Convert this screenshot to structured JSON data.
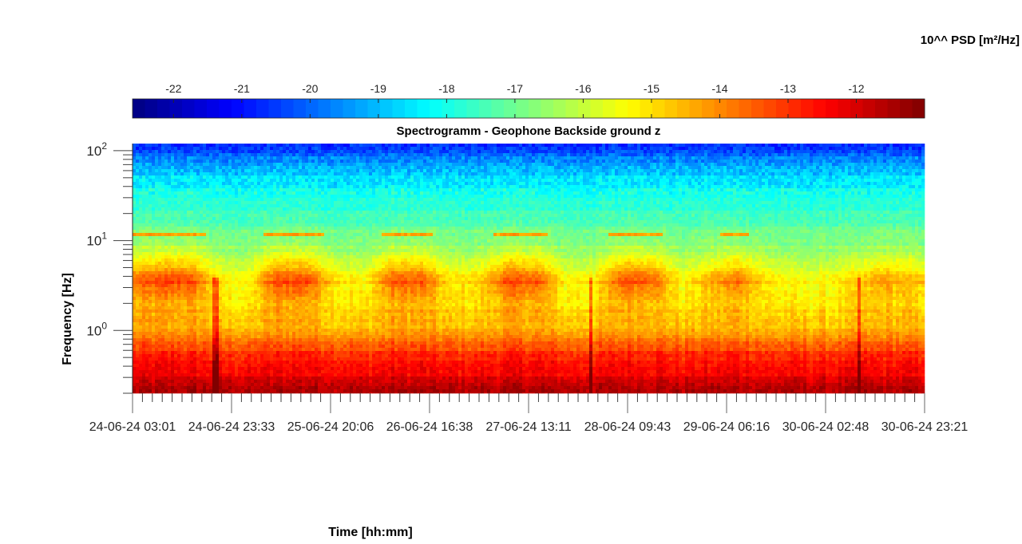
{
  "chart_data": {
    "type": "heatmap",
    "title": "Spectrogramm - Geophone Backside ground z",
    "xlabel": "Time [hh:mm]",
    "ylabel": "Frequency [Hz]",
    "colorbar_label": "10^^ PSD [m²/Hz]",
    "colorbar_ticks": [
      "-22",
      "-21",
      "-20",
      "-19",
      "-18",
      "-17",
      "-16",
      "-15",
      "-14",
      "-13",
      "-12"
    ],
    "colorbar_tick_values": [
      -22,
      -21,
      -20,
      -19,
      -18,
      -17,
      -16,
      -15,
      -14,
      -13,
      -12
    ],
    "clim": [
      -22.6,
      -11.0
    ],
    "colormap": "jet",
    "yscale": "log",
    "ylim": [
      0.2,
      120
    ],
    "ytick_values": [
      1,
      10,
      100
    ],
    "ytick_labels": [
      {
        "base": "10",
        "exp": "0"
      },
      {
        "base": "10",
        "exp": "1"
      },
      {
        "base": "10",
        "exp": "2"
      }
    ],
    "xlim_hours": [
      0,
      164.33
    ],
    "xtick_hours": [
      0,
      20.54,
      41.08,
      61.62,
      82.17,
      102.71,
      123.25,
      143.79,
      164.33
    ],
    "xtick_labels": [
      "24-06-24 03:01",
      "24-06-24 23:33",
      "25-06-24 20:06",
      "26-06-24 16:38",
      "27-06-24 13:11",
      "28-06-24 09:43",
      "29-06-24 06:16",
      "30-06-24 02:48",
      "30-06-24 23:21"
    ],
    "frequencies_hz": [
      0.2,
      0.3,
      0.5,
      0.7,
      1,
      2,
      3.5,
      6,
      10,
      20,
      50,
      120
    ],
    "psd_log10_quiet": [
      -11.6,
      -12.3,
      -13.0,
      -13.6,
      -14.6,
      -15.2,
      -15.6,
      -16.4,
      -16.9,
      -17.5,
      -18.6,
      -20.6
    ],
    "psd_log10_active": [
      -11.5,
      -12.2,
      -12.7,
      -13.4,
      -14.3,
      -14.3,
      -13.2,
      -15.2,
      -16.6,
      -17.4,
      -18.5,
      -20.6
    ],
    "time_hours": [
      0,
      6,
      12,
      18,
      24,
      30,
      36,
      42,
      48,
      54,
      60,
      66,
      72,
      78,
      84,
      90,
      96,
      102,
      108,
      114,
      120,
      126,
      132,
      138,
      144,
      150,
      156,
      162
    ],
    "activity": [
      0.8,
      1,
      1,
      0.2,
      0.1,
      1,
      1,
      0.3,
      0.1,
      0.9,
      0.9,
      0.2,
      0.3,
      1,
      0.9,
      0.1,
      0.2,
      1,
      0.9,
      0.1,
      0.5,
      0.8,
      0.2,
      0.1,
      0.1,
      0.3,
      0.6,
      0.4
    ],
    "transients_hours": [
      17.2,
      95.0,
      151.0
    ]
  }
}
